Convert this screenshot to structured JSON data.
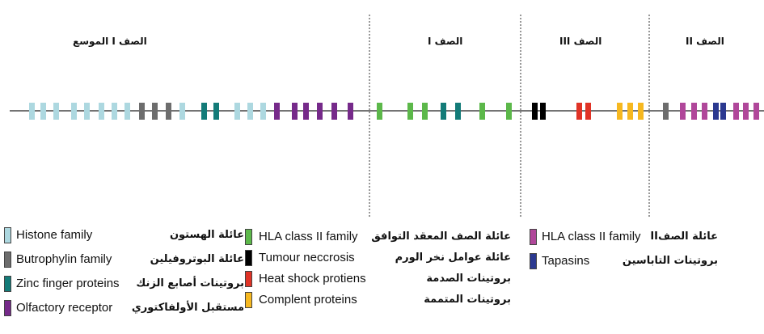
{
  "regions": [
    {
      "label": "الصف I الموسع"
    },
    {
      "label": "الصف I"
    },
    {
      "label": "الصف III"
    },
    {
      "label": "الصف II"
    }
  ],
  "colors": {
    "histone": "#add8e0",
    "butrophylin": "#6d6d6d",
    "zinc": "#137b78",
    "olfactory": "#762a8a",
    "hla2": "#5cb84a",
    "tnf": "#000000",
    "hsp": "#e03326",
    "complement": "#f6b820",
    "hla_class2": "#b0479a",
    "tapasin": "#2b3990"
  },
  "genes": [
    {
      "family": "histone"
    },
    {
      "family": "histone"
    },
    {
      "family": "histone"
    },
    {
      "family": "histone"
    },
    {
      "family": "histone"
    },
    {
      "family": "histone"
    },
    {
      "family": "histone"
    },
    {
      "family": "histone"
    },
    {
      "family": "butrophylin"
    },
    {
      "family": "butrophylin"
    },
    {
      "family": "butrophylin"
    },
    {
      "family": "histone"
    },
    {
      "family": "zinc"
    },
    {
      "family": "zinc"
    },
    {
      "family": "histone"
    },
    {
      "family": "histone"
    },
    {
      "family": "histone"
    },
    {
      "family": "olfactory"
    },
    {
      "family": "olfactory"
    },
    {
      "family": "olfactory"
    },
    {
      "family": "olfactory"
    },
    {
      "family": "olfactory"
    },
    {
      "family": "olfactory"
    },
    {
      "family": "hla2"
    },
    {
      "family": "hla2"
    },
    {
      "family": "hla2"
    },
    {
      "family": "zinc"
    },
    {
      "family": "zinc"
    },
    {
      "family": "hla2"
    },
    {
      "family": "hla2"
    },
    {
      "family": "tnf"
    },
    {
      "family": "tnf"
    },
    {
      "family": "hsp"
    },
    {
      "family": "hsp"
    },
    {
      "family": "complement"
    },
    {
      "family": "complement"
    },
    {
      "family": "complement"
    },
    {
      "family": "butrophylin"
    },
    {
      "family": "hla_class2"
    },
    {
      "family": "hla_class2"
    },
    {
      "family": "hla_class2"
    },
    {
      "family": "tapasin"
    },
    {
      "family": "tapasin"
    },
    {
      "family": "hla_class2"
    },
    {
      "family": "hla_class2"
    },
    {
      "family": "hla_class2"
    }
  ],
  "legend": {
    "groups": [
      {
        "items": [
          {
            "family": "histone",
            "en": "Histone family",
            "ar": "عائلة الهستون"
          },
          {
            "family": "butrophylin",
            "en": "Butrophylin family",
            "ar": "عائلة البوتروفيلين"
          },
          {
            "family": "zinc",
            "en": "Zinc finger proteins",
            "ar": "بروتينات أصابع الزنك"
          },
          {
            "family": "olfactory",
            "en": "Olfactory receptor",
            "ar": "مستقبل الأولفاكتوري"
          }
        ]
      },
      {
        "items": [
          {
            "family": "hla2",
            "en": "HLA class II family",
            "ar": "عائلة الصف المعقد التوافق"
          },
          {
            "family": "tnf",
            "en": "Tumour neccrosis",
            "ar": "عائلة عوامل نخر الورم"
          },
          {
            "family": "hsp",
            "en": "Heat shock protiens",
            "ar": "بروتينات الصدمة"
          },
          {
            "family": "complement",
            "en": "Complent proteins",
            "ar": "بروتينات المتممة"
          }
        ]
      },
      {
        "items": [
          {
            "family": "hla_class2",
            "en": "HLA class II family",
            "ar": "عائلة الصفII"
          },
          {
            "family": "tapasin",
            "en": "Tapasins",
            "ar": "بروتينات التاباسين"
          }
        ]
      }
    ]
  }
}
